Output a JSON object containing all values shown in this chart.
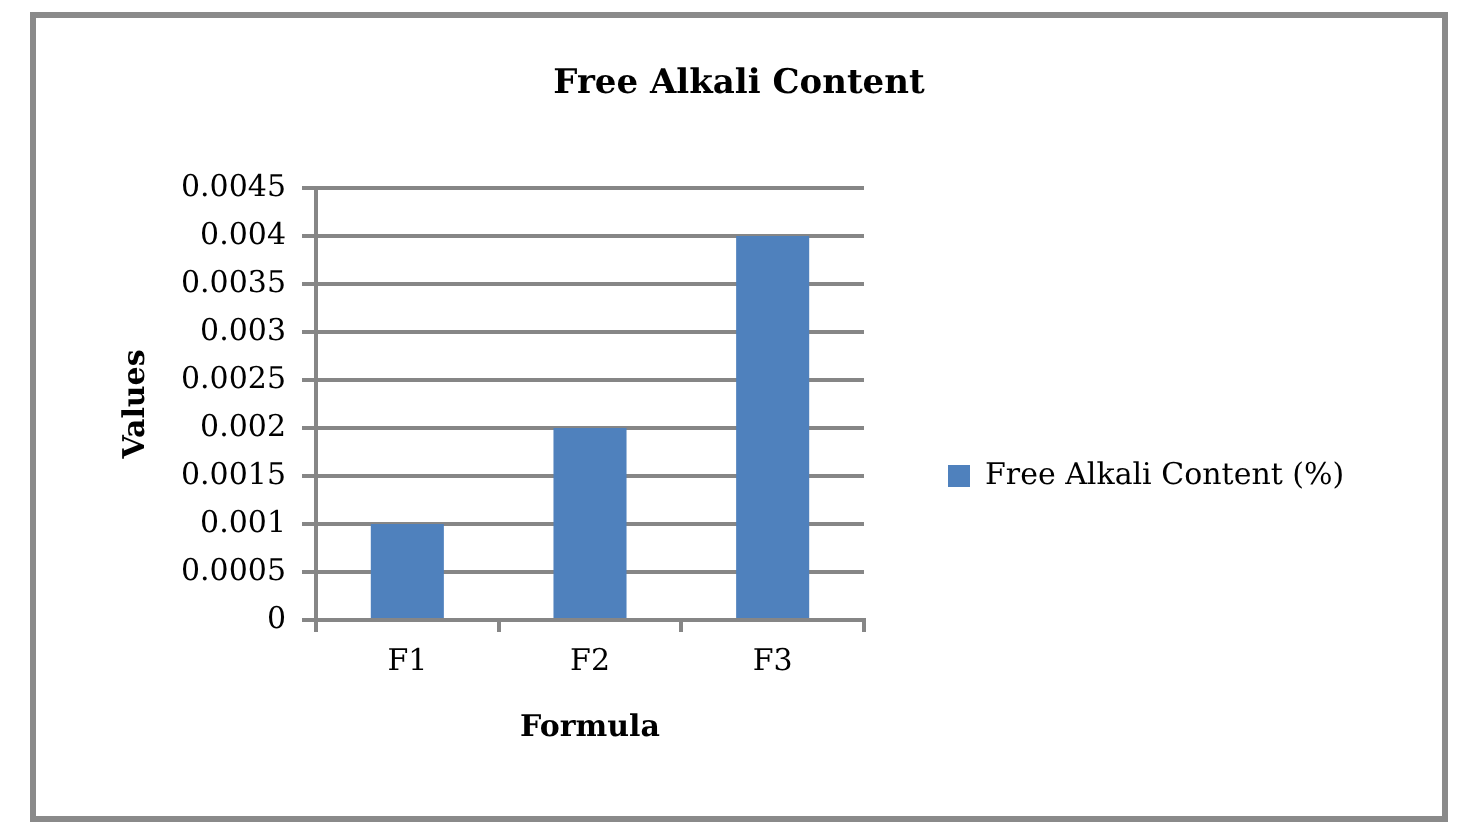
{
  "chart_data": {
    "type": "bar",
    "title": "Free Alkali Content",
    "xlabel": "Formula",
    "ylabel": "Values",
    "categories": [
      "F1",
      "F2",
      "F3"
    ],
    "series": [
      {
        "name": "Free Alkali Content (%)",
        "color": "#4f81bd",
        "values": [
          0.001,
          0.002,
          0.004
        ]
      }
    ],
    "ylim": [
      0,
      0.0045
    ],
    "yticks": [
      0,
      0.0005,
      0.001,
      0.0015,
      0.002,
      0.0025,
      0.003,
      0.0035,
      0.004,
      0.0045
    ],
    "grid": "y",
    "legend": "right"
  }
}
